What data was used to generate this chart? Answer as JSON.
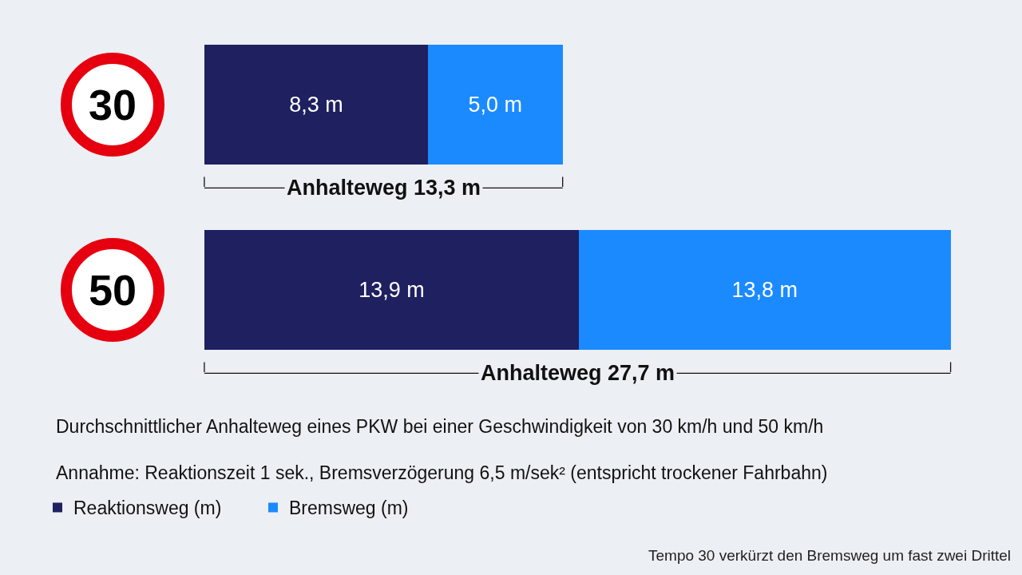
{
  "chart_data": {
    "type": "bar",
    "orientation": "horizontal",
    "stacked": true,
    "title": "Durchschnittlicher Anhalteweg eines PKW bei einer Geschwindigkeit von 30 km/h und 50 km/h",
    "subtitle": "Annahme: Reaktionszeit 1 sek., Bremsverzögerung 6,5 m/sek² (entspricht trockener Fahrbahn)",
    "annotations": [
      "Tempo 30 verkürzt den Bremsweg um fast zwei Drittel"
    ],
    "categories": [
      "30",
      "50"
    ],
    "series": [
      {
        "name": "Reaktionsweg (m)",
        "color": "#1f2060",
        "values": [
          8.3,
          13.9
        ],
        "value_labels": [
          "8,3 m",
          "13,9 m"
        ]
      },
      {
        "name": "Bremsweg (m)",
        "color": "#1b8aff",
        "values": [
          5.0,
          13.8
        ],
        "value_labels": [
          "5,0 m",
          "13,8 m"
        ]
      }
    ],
    "totals": [
      "Anhalteweg 13,3 m",
      "Anhalteweg 27,7 m"
    ],
    "legend": "bottom left",
    "tick_labels": "y"
  }
}
